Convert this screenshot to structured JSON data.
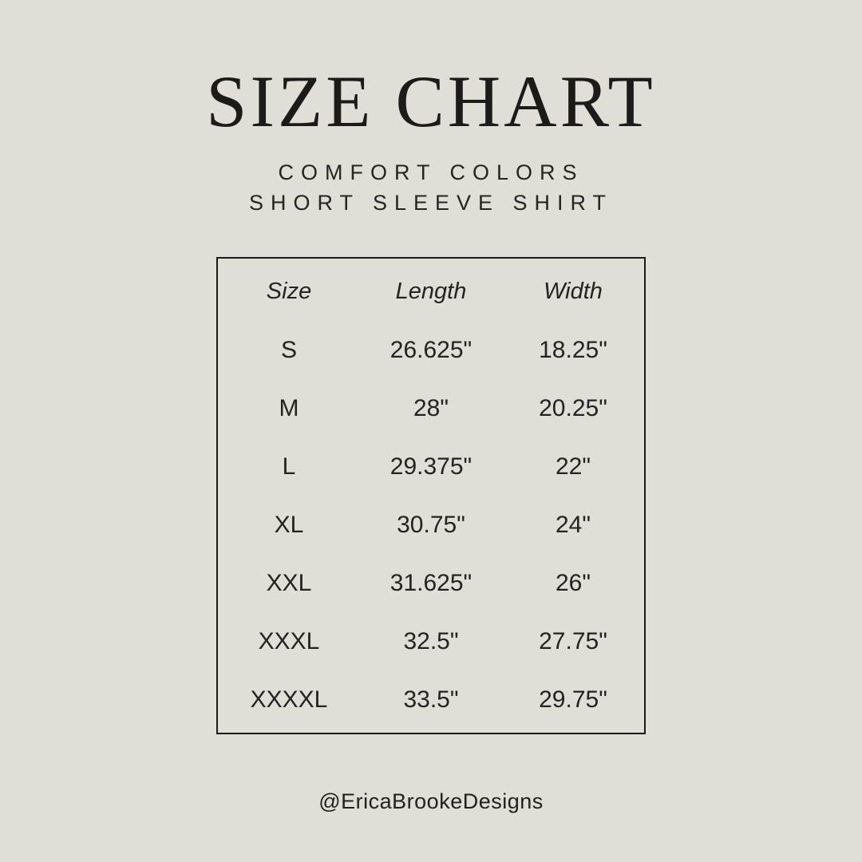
{
  "page": {
    "background_color": "#dfded7",
    "text_color": "#1f1f1d",
    "border_color": "#1a1a18"
  },
  "chart_data": {
    "type": "table",
    "title": "SIZE CHART",
    "subtitle_lines": [
      "COMFORT COLORS",
      "SHORT SLEEVE SHIRT"
    ],
    "columns": [
      "Size",
      "Length",
      "Width"
    ],
    "rows": [
      [
        "S",
        "26.625\"",
        "18.25\""
      ],
      [
        "M",
        "28\"",
        "20.25\""
      ],
      [
        "L",
        "29.375\"",
        "22\""
      ],
      [
        "XL",
        "30.75\"",
        "24\""
      ],
      [
        "XXL",
        "31.625\"",
        "26\""
      ],
      [
        "XXXL",
        "32.5\"",
        "27.75\""
      ],
      [
        "XXXXL",
        "33.5\"",
        "29.75\""
      ]
    ],
    "units": "inches",
    "layout": {
      "grid": false,
      "legend": "none"
    }
  },
  "footer": {
    "handle": "@EricaBrookeDesigns"
  }
}
